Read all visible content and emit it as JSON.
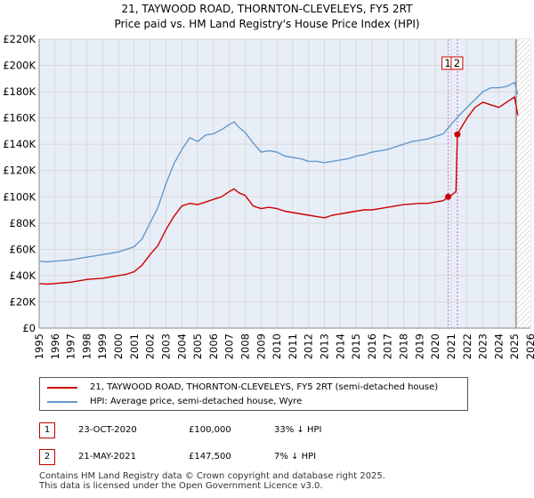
{
  "title_line1": "21, TAYWOOD ROAD, THORNTON-CLEVELEYS, FY5 2RT",
  "title_line2": "Price paid vs. HM Land Registry's House Price Index (HPI)",
  "colors": {
    "property": "#cc0000",
    "hpi": "#6699cc",
    "marker_line": "#cc66cc",
    "grid": "#d9d9d9",
    "plot_bg": "#e8eef7",
    "future_hatch": "#bbbbbb"
  },
  "legend": {
    "property_label": "21, TAYWOOD ROAD, THORNTON-CLEVELEYS, FY5 2RT (semi-detached house)",
    "hpi_label": "HPI: Average price, semi-detached house, Wyre"
  },
  "transactions": [
    {
      "num": "1",
      "date": "23-OCT-2020",
      "price": "£100,000",
      "hpi_diff": "33% ↓ HPI"
    },
    {
      "num": "2",
      "date": "21-MAY-2021",
      "price": "£147,500",
      "hpi_diff": "7% ↓ HPI"
    }
  ],
  "footer": {
    "line1": "Contains HM Land Registry data © Crown copyright and database right 2025.",
    "line2": "This data is licensed under the Open Government Licence v3.0."
  },
  "chart_data": {
    "type": "line",
    "title": "21, TAYWOOD ROAD, THORNTON-CLEVELEYS, FY5 2RT — Price paid vs. HM Land Registry's House Price Index (HPI)",
    "xlabel": "",
    "ylabel": "",
    "xlim": [
      1995,
      2026
    ],
    "ylim": [
      0,
      220000
    ],
    "x_ticks": [
      1995,
      1996,
      1997,
      1998,
      1999,
      2000,
      2001,
      2002,
      2003,
      2004,
      2005,
      2006,
      2007,
      2008,
      2009,
      2010,
      2011,
      2012,
      2013,
      2014,
      2015,
      2016,
      2017,
      2018,
      2019,
      2020,
      2021,
      2022,
      2023,
      2024,
      2025,
      2026
    ],
    "y_ticks": [
      {
        "value": 0,
        "label": "£0"
      },
      {
        "value": 20000,
        "label": "£20K"
      },
      {
        "value": 40000,
        "label": "£40K"
      },
      {
        "value": 60000,
        "label": "£60K"
      },
      {
        "value": 80000,
        "label": "£80K"
      },
      {
        "value": 100000,
        "label": "£100K"
      },
      {
        "value": 120000,
        "label": "£120K"
      },
      {
        "value": 140000,
        "label": "£140K"
      },
      {
        "value": 160000,
        "label": "£160K"
      },
      {
        "value": 180000,
        "label": "£180K"
      },
      {
        "value": 200000,
        "label": "£200K"
      },
      {
        "value": 220000,
        "label": "£220K"
      }
    ],
    "grid": true,
    "future_region_start": 2025.1,
    "series": [
      {
        "name": "21, TAYWOOD ROAD, THORNTON-CLEVELEYS, FY5 2RT (semi-detached house)",
        "color": "#cc0000",
        "x": [
          1995,
          1995.5,
          1996,
          1996.5,
          1997,
          1997.5,
          1998,
          1998.5,
          1999,
          1999.5,
          2000,
          2000.5,
          2001,
          2001.5,
          2002,
          2002.5,
          2003,
          2003.5,
          2004,
          2004.5,
          2005,
          2005.5,
          2006,
          2006.5,
          2007,
          2007.3,
          2007.6,
          2008,
          2008.5,
          2009,
          2009.5,
          2010,
          2010.5,
          2011,
          2011.5,
          2012,
          2012.5,
          2013,
          2013.5,
          2014,
          2014.5,
          2015,
          2015.5,
          2016,
          2016.5,
          2017,
          2017.5,
          2018,
          2018.5,
          2019,
          2019.5,
          2020,
          2020.5,
          2020.81,
          2021,
          2021.3,
          2021.39,
          2021.6,
          2022,
          2022.5,
          2023,
          2023.5,
          2024,
          2024.5,
          2025,
          2025.2
        ],
        "y": [
          34000,
          33500,
          34000,
          34500,
          35000,
          36000,
          37000,
          37500,
          38000,
          39000,
          40000,
          41000,
          43000,
          48000,
          56000,
          63000,
          75000,
          85000,
          93000,
          95000,
          94000,
          96000,
          98000,
          100000,
          104000,
          106000,
          103000,
          101000,
          93000,
          91000,
          92000,
          91000,
          89000,
          88000,
          87000,
          86000,
          85000,
          84000,
          86000,
          87000,
          88000,
          89000,
          90000,
          90000,
          91000,
          92000,
          93000,
          94000,
          94500,
          95000,
          95000,
          96000,
          97000,
          100000,
          101000,
          104000,
          147500,
          152000,
          160000,
          168000,
          172000,
          170000,
          168000,
          172000,
          176000,
          162000
        ]
      },
      {
        "name": "HPI: Average price, semi-detached house, Wyre",
        "color": "#6699cc",
        "x": [
          1995,
          1995.5,
          1996,
          1996.5,
          1997,
          1997.5,
          1998,
          1998.5,
          1999,
          1999.5,
          2000,
          2000.5,
          2001,
          2001.5,
          2002,
          2002.5,
          2003,
          2003.5,
          2004,
          2004.5,
          2005,
          2005.5,
          2006,
          2006.5,
          2007,
          2007.3,
          2007.6,
          2008,
          2008.5,
          2009,
          2009.5,
          2010,
          2010.5,
          2011,
          2011.5,
          2012,
          2012.5,
          2013,
          2013.5,
          2014,
          2014.5,
          2015,
          2015.5,
          2016,
          2016.5,
          2017,
          2017.5,
          2018,
          2018.5,
          2019,
          2019.5,
          2020,
          2020.5,
          2021,
          2021.5,
          2022,
          2022.5,
          2023,
          2023.5,
          2024,
          2024.5,
          2025,
          2025.2
        ],
        "y": [
          51000,
          50500,
          51000,
          51500,
          52000,
          53000,
          54000,
          55000,
          56000,
          57000,
          58000,
          60000,
          62000,
          68000,
          80000,
          92000,
          110000,
          125000,
          136000,
          145000,
          142000,
          147000,
          148000,
          151000,
          155000,
          157000,
          153000,
          149000,
          141000,
          134000,
          135000,
          134000,
          131000,
          130000,
          129000,
          127000,
          127000,
          126000,
          127000,
          128000,
          129000,
          131000,
          132000,
          134000,
          135000,
          136000,
          138000,
          140000,
          142000,
          143000,
          144000,
          146000,
          148000,
          155000,
          162000,
          168000,
          174000,
          180000,
          183000,
          183000,
          184000,
          187000,
          178000
        ]
      }
    ],
    "annotations": [
      {
        "label": "1",
        "x": 2020.81,
        "y": 100000
      },
      {
        "label": "2",
        "x": 2021.39,
        "y": 147500
      }
    ]
  }
}
